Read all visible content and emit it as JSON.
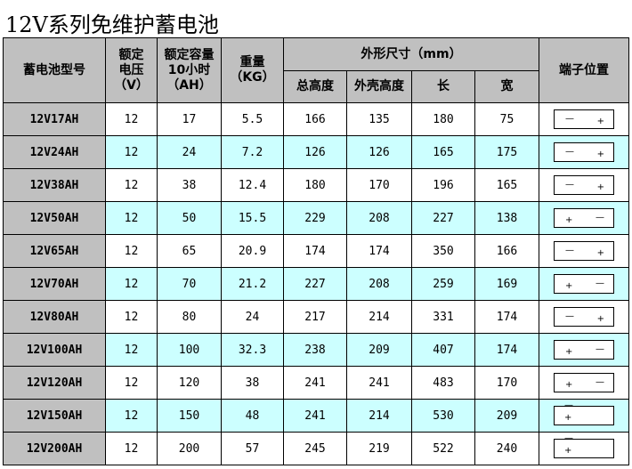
{
  "title": "12V系列免维护蓄电池",
  "headers": {
    "model": "蓄电池型号",
    "voltage": [
      "额定",
      "电压",
      "（V）"
    ],
    "capacity": [
      "额定容量",
      "10小时",
      "（AH）"
    ],
    "weight": [
      "重量",
      "（KG）"
    ],
    "dimensions": "外形尺寸（mm）",
    "total_height": "总高度",
    "case_height": "外壳高度",
    "length": "长",
    "width": "宽",
    "terminal": "端子位置"
  },
  "terminal_symbols": {
    "neg": "—",
    "pos": "+"
  },
  "colors": {
    "header": "#c0c0c0",
    "alt_row": "#ccffff"
  },
  "rows": [
    {
      "model": "12V17AH",
      "v": "12",
      "ah": "17",
      "kg": "5.5",
      "th": "166",
      "ch": "135",
      "l": "180",
      "w": "75",
      "terminal": "mp"
    },
    {
      "model": "12V24AH",
      "v": "12",
      "ah": "24",
      "kg": "7.2",
      "th": "126",
      "ch": "126",
      "l": "165",
      "w": "175",
      "terminal": "mp"
    },
    {
      "model": "12V38AH",
      "v": "12",
      "ah": "38",
      "kg": "12.4",
      "th": "180",
      "ch": "170",
      "l": "196",
      "w": "165",
      "terminal": "mp"
    },
    {
      "model": "12V50AH",
      "v": "12",
      "ah": "50",
      "kg": "15.5",
      "th": "229",
      "ch": "208",
      "l": "227",
      "w": "138",
      "terminal": "pm"
    },
    {
      "model": "12V65AH",
      "v": "12",
      "ah": "65",
      "kg": "20.9",
      "th": "174",
      "ch": "174",
      "l": "350",
      "w": "166",
      "terminal": "mp"
    },
    {
      "model": "12V70AH",
      "v": "12",
      "ah": "70",
      "kg": "21.2",
      "th": "227",
      "ch": "208",
      "l": "259",
      "w": "169",
      "terminal": "pm"
    },
    {
      "model": "12V80AH",
      "v": "12",
      "ah": "80",
      "kg": "24",
      "th": "217",
      "ch": "214",
      "l": "331",
      "w": "174",
      "terminal": "mp"
    },
    {
      "model": "12V100AH",
      "v": "12",
      "ah": "100",
      "kg": "32.3",
      "th": "238",
      "ch": "209",
      "l": "407",
      "w": "174",
      "terminal": "pm"
    },
    {
      "model": "12V120AH",
      "v": "12",
      "ah": "120",
      "kg": "38",
      "th": "241",
      "ch": "241",
      "l": "483",
      "w": "170",
      "terminal": "pm"
    },
    {
      "model": "12V150AH",
      "v": "12",
      "ah": "150",
      "kg": "48",
      "th": "241",
      "ch": "214",
      "l": "530",
      "w": "209",
      "terminal": "stack"
    },
    {
      "model": "12V200AH",
      "v": "12",
      "ah": "200",
      "kg": "57",
      "th": "245",
      "ch": "219",
      "l": "522",
      "w": "240",
      "terminal": "stack"
    }
  ]
}
